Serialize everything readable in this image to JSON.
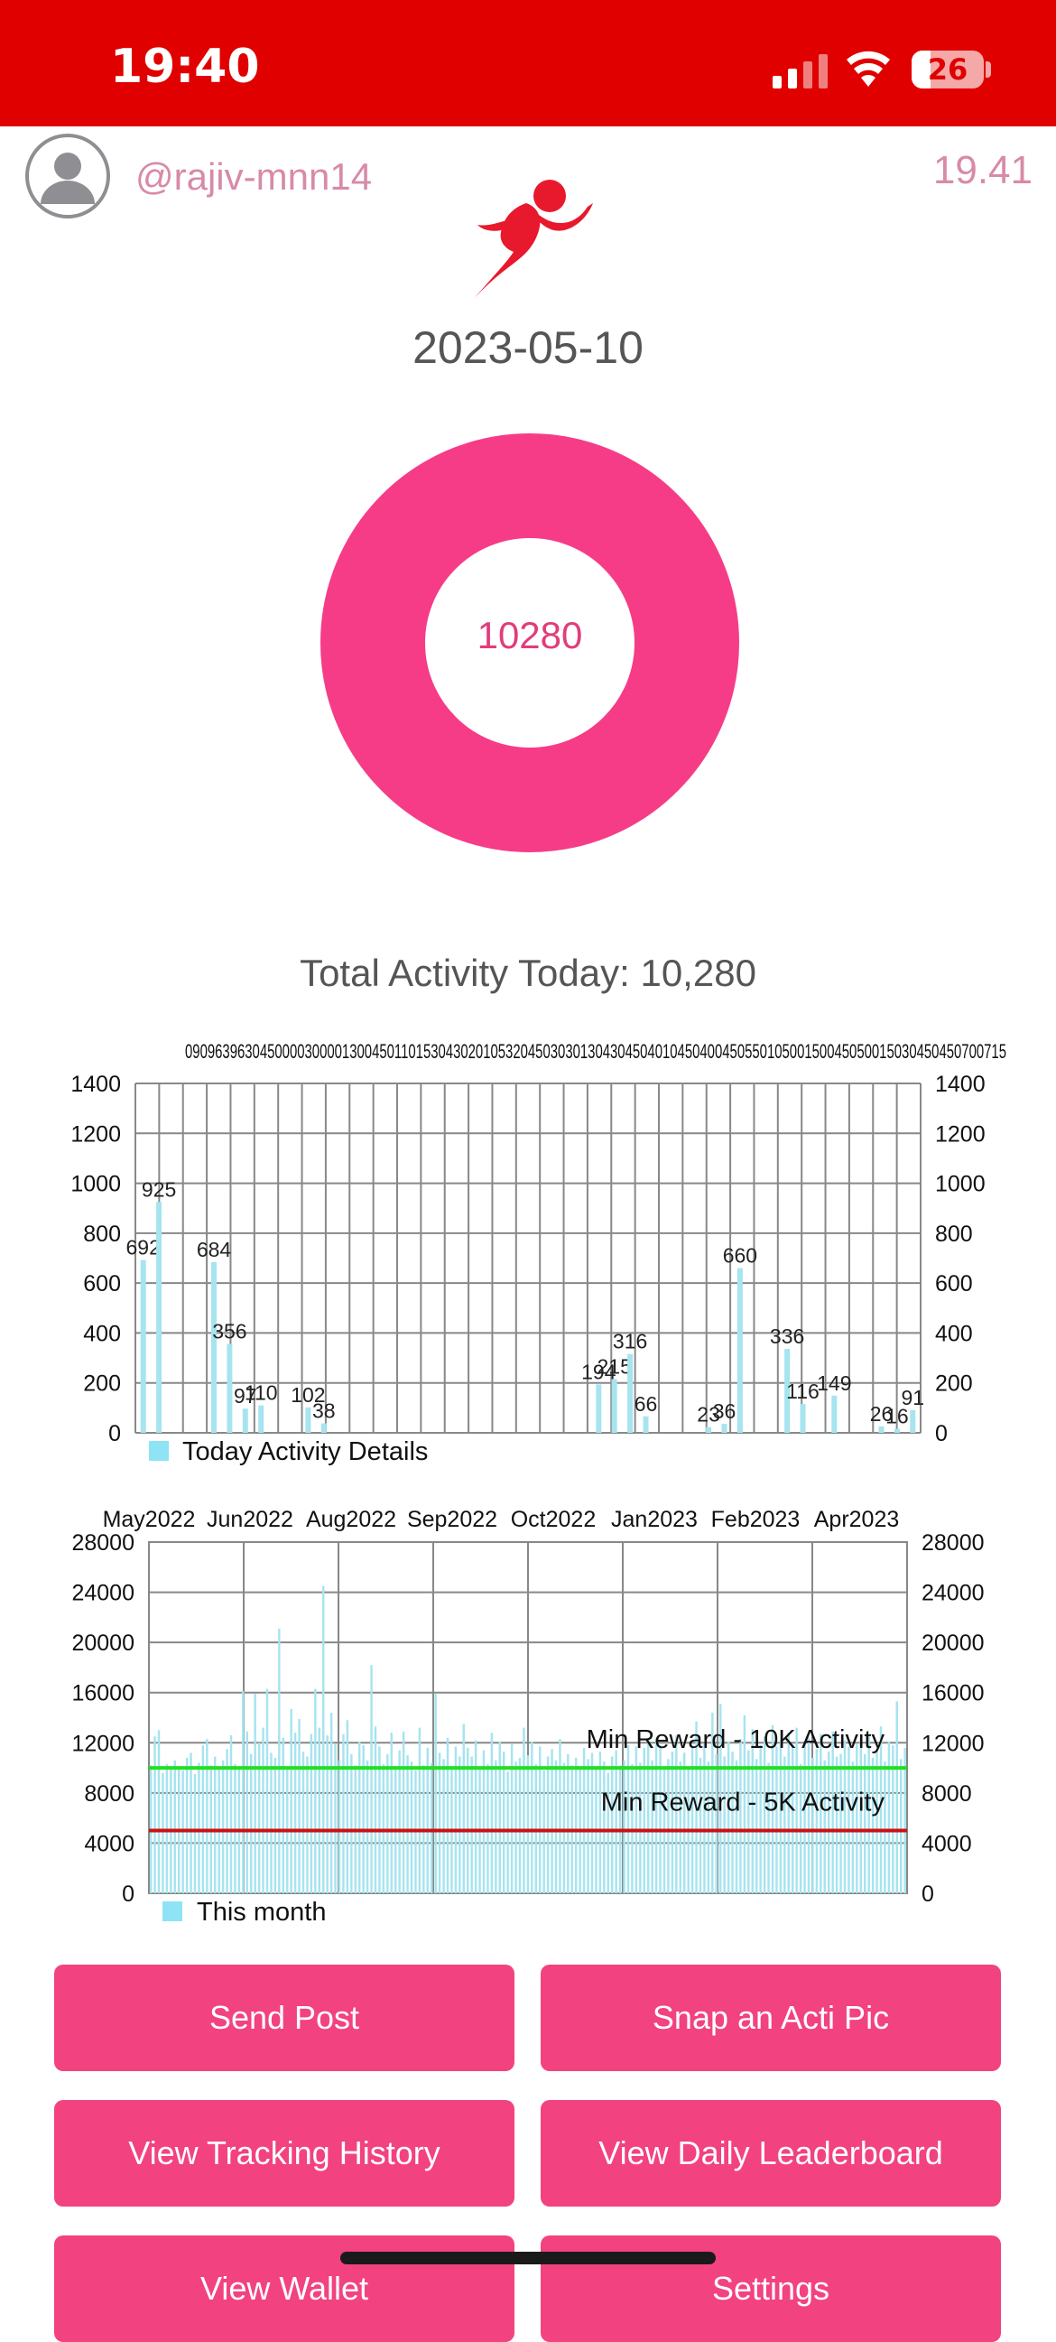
{
  "status_bar": {
    "time": "19:40",
    "battery": "26",
    "battery_level": 0.26,
    "signal_icon": "cellular-signal-icon",
    "wifi_icon": "wifi-icon"
  },
  "header": {
    "username": "@rajiv-mnn14",
    "right_value": "19.41",
    "avatar_icon": "user-avatar-icon",
    "logo_icon": "running-man-icon"
  },
  "date": "2023-05-10",
  "donut": {
    "value": "10280",
    "color": "#f63c87"
  },
  "total_activity": "Total Activity Today: 10,280",
  "today_chart": {
    "type": "bar",
    "top_labels": "09096396304500003000013004501101530430201053204503030130430450401045040045055010500150045050015030450450700715",
    "legend": "Today Activity Details",
    "ylim": [
      0,
      1400
    ],
    "yticks": [
      "0",
      "200",
      "400",
      "600",
      "800",
      "1000",
      "1200",
      "1400"
    ],
    "bars": [
      {
        "x": 0.01,
        "y": 692,
        "label": "692"
      },
      {
        "x": 0.03,
        "y": 925,
        "label": "925"
      },
      {
        "x": 0.1,
        "y": 684,
        "label": "684"
      },
      {
        "x": 0.12,
        "y": 356,
        "label": "356"
      },
      {
        "x": 0.14,
        "y": 97,
        "label": "97"
      },
      {
        "x": 0.16,
        "y": 110,
        "label": "110"
      },
      {
        "x": 0.22,
        "y": 102,
        "label": "102"
      },
      {
        "x": 0.24,
        "y": 38,
        "label": "38"
      },
      {
        "x": 0.59,
        "y": 194,
        "label": "194"
      },
      {
        "x": 0.61,
        "y": 215,
        "label": "215"
      },
      {
        "x": 0.63,
        "y": 316,
        "label": "316"
      },
      {
        "x": 0.65,
        "y": 66,
        "label": "66"
      },
      {
        "x": 0.73,
        "y": 23,
        "label": "23"
      },
      {
        "x": 0.75,
        "y": 36,
        "label": "36"
      },
      {
        "x": 0.77,
        "y": 660,
        "label": "660"
      },
      {
        "x": 0.83,
        "y": 336,
        "label": "336"
      },
      {
        "x": 0.85,
        "y": 116,
        "label": "116"
      },
      {
        "x": 0.89,
        "y": 149,
        "label": "149"
      },
      {
        "x": 0.95,
        "y": 26,
        "label": "26"
      },
      {
        "x": 0.97,
        "y": 16,
        "label": "16"
      },
      {
        "x": 0.99,
        "y": 91,
        "label": "91"
      }
    ]
  },
  "month_chart": {
    "type": "bar",
    "x_labels": [
      "May2022",
      "Jun2022",
      "Aug2022",
      "Sep2022",
      "Oct2022",
      "Jan2023",
      "Feb2023",
      "Apr2023"
    ],
    "legend": "This month",
    "ylim": [
      0,
      28000
    ],
    "yticks": [
      "0",
      "4000",
      "8000",
      "12000",
      "16000",
      "20000",
      "24000",
      "28000"
    ],
    "lines": [
      {
        "label": "Min Reward - 10K Activity",
        "y": 10000,
        "color": "#22e022"
      },
      {
        "label": "Min Reward - 5K Activity",
        "y": 5000,
        "color": "#cc1111"
      }
    ],
    "values": [
      10200,
      12500,
      13000,
      9600,
      10300,
      10100,
      10600,
      10000,
      9800,
      10800,
      11200,
      9500,
      10400,
      11800,
      12300,
      10200,
      10900,
      9900,
      10600,
      11500,
      12600,
      10300,
      10000,
      16100,
      12900,
      11100,
      15900,
      12000,
      13200,
      16300,
      11200,
      10800,
      21100,
      12400,
      10100,
      14700,
      12800,
      13900,
      11300,
      10900,
      12700,
      16300,
      13200,
      24500,
      12600,
      14400,
      11900,
      10600,
      12700,
      13800,
      11100,
      10200,
      12100,
      11800,
      10600,
      18200,
      13300,
      11700,
      10300,
      11100,
      12800,
      10100,
      11400,
      12900,
      11000,
      10500,
      9800,
      13200,
      10200,
      11600,
      10400,
      15900,
      11200,
      10700,
      12400,
      10100,
      11700,
      10900,
      13500,
      11600,
      10900,
      12200,
      10100,
      11400,
      10300,
      12800,
      10600,
      12100,
      11300,
      9700,
      11900,
      10500,
      10800,
      13200,
      11000,
      12100,
      10300,
      11700,
      9800,
      10900,
      11500,
      10600,
      12300,
      10400,
      11100,
      10200,
      10800,
      9900,
      11600,
      10700,
      11200,
      10100,
      11300,
      10500,
      9600,
      10900,
      11400,
      10200,
      10600,
      11800,
      10300,
      11700,
      10400,
      11600,
      12100,
      10600,
      12400,
      11800,
      9900,
      10700,
      11300,
      12600,
      10500,
      11200,
      10100,
      11600,
      13700,
      10800,
      11900,
      10500,
      14400,
      11100,
      15100,
      10900,
      12100,
      11300,
      10600,
      12300,
      14200,
      11400,
      13100,
      10700,
      11800,
      12500,
      10400,
      13400,
      11700,
      12200,
      10900,
      12800,
      11600,
      13200,
      10300,
      11900,
      12400,
      10800,
      11500,
      12700,
      10600,
      11300,
      12900,
      10900,
      11100,
      12200,
      11700,
      10500,
      11900,
      12300,
      11100,
      12600,
      10800,
      11400,
      13300,
      10500,
      12100,
      11800,
      15300,
      10700,
      11600
    ]
  },
  "buttons": [
    {
      "label": "Send Post"
    },
    {
      "label": "Snap an Acti Pic"
    },
    {
      "label": "View Tracking History"
    },
    {
      "label": "View Daily Leaderboard"
    },
    {
      "label": "View Wallet"
    },
    {
      "label": "Settings"
    }
  ]
}
